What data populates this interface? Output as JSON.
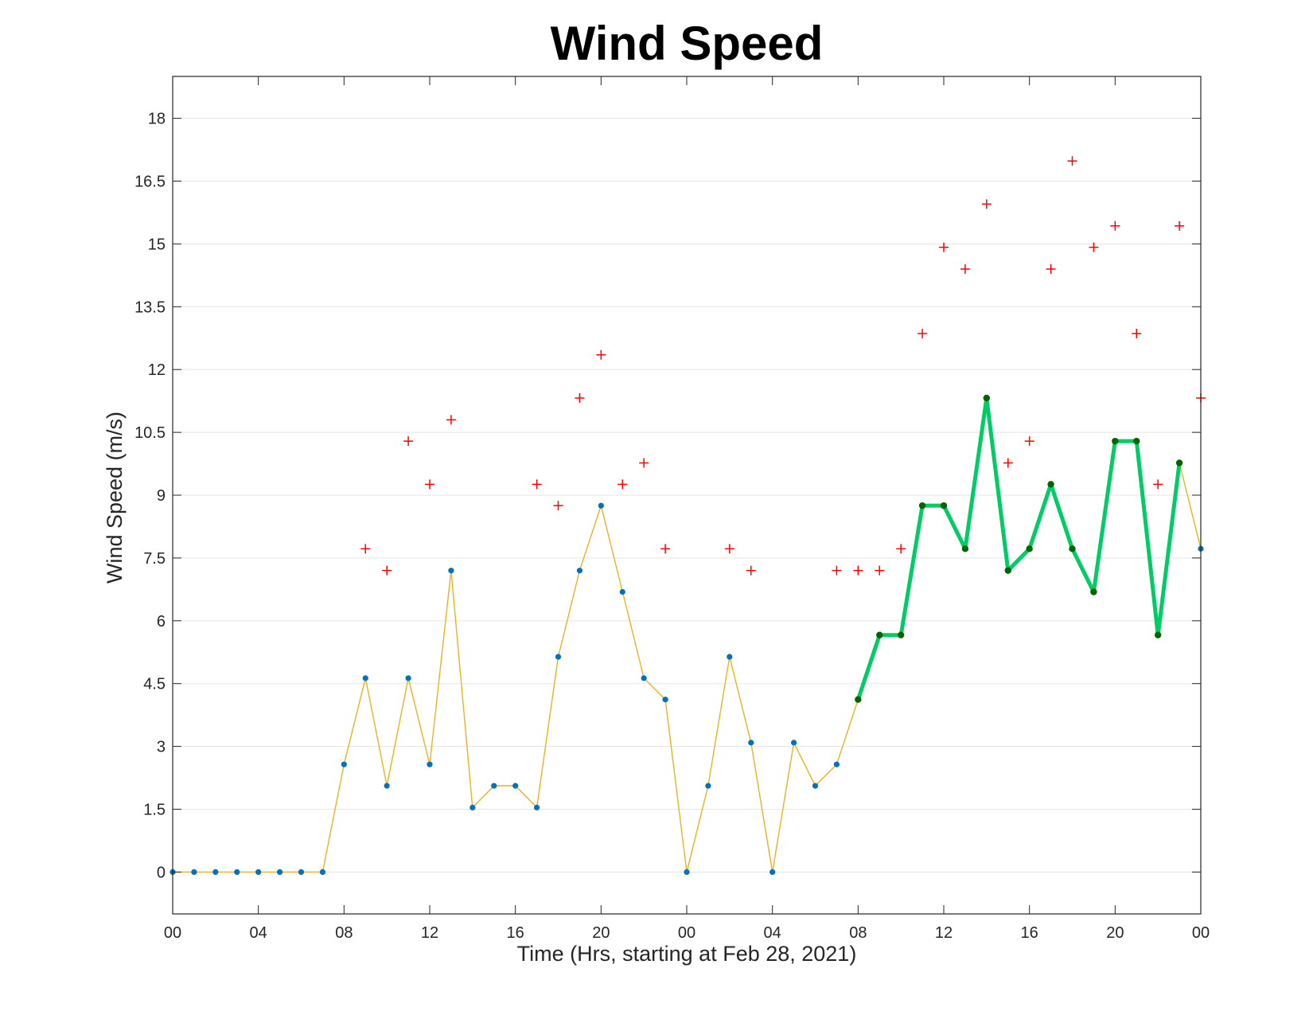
{
  "chart_data": {
    "type": "line",
    "title": "Wind Speed",
    "xlabel": "Time (Hrs, starting at Feb 28, 2021)",
    "ylabel": "Wind Speed (m/s)",
    "xlim": [
      0,
      48
    ],
    "ylim": [
      -1,
      19
    ],
    "yticks": [
      0,
      1.5,
      3,
      4.5,
      6,
      7.5,
      9,
      10.5,
      12,
      13.5,
      15,
      16.5,
      18
    ],
    "ytick_labels": [
      "0",
      "1.5",
      "3",
      "4.5",
      "6",
      "7.5",
      "9",
      "10.5",
      "12",
      "13.5",
      "15",
      "16.5",
      "18"
    ],
    "xticks": [
      0,
      4,
      8,
      12,
      16,
      20,
      24,
      28,
      32,
      36,
      40,
      44,
      48
    ],
    "xtick_labels": [
      "00",
      "04",
      "08",
      "12",
      "16",
      "20",
      "00",
      "04",
      "08",
      "12",
      "16",
      "20",
      "00"
    ],
    "grid": "horizontal",
    "colors": {
      "series_line": "#EDB120",
      "series_marker": "#0072BD",
      "highlight_line": "#00CC66",
      "highlight_marker": "#006400",
      "gust_marker": "#FF0000",
      "grid": "#E5E5E5",
      "axes": "#262626"
    },
    "series": [
      {
        "x": [
          0,
          1,
          2,
          3,
          4,
          5,
          6,
          7,
          8,
          9,
          10,
          11,
          12,
          13,
          14,
          15,
          16,
          17,
          18,
          19,
          20,
          21,
          22,
          23,
          24,
          25,
          26,
          27,
          28,
          29,
          30,
          31,
          32,
          33,
          34,
          35,
          36,
          37,
          38,
          39,
          40,
          41,
          42,
          43,
          44,
          45,
          46,
          47,
          48
        ],
        "values": [
          0,
          0,
          0,
          0,
          0,
          0,
          0,
          0,
          2.57,
          4.63,
          2.06,
          4.63,
          2.57,
          7.2,
          1.54,
          2.06,
          2.06,
          1.54,
          5.14,
          7.2,
          8.75,
          6.69,
          4.63,
          4.12,
          0,
          2.06,
          5.14,
          3.09,
          0,
          3.09,
          2.06,
          2.57,
          4.12,
          5.66,
          5.66,
          8.75,
          8.75,
          7.72,
          11.32,
          7.2,
          7.72,
          9.26,
          7.72,
          6.69,
          10.29,
          10.29,
          5.66,
          9.77,
          7.72
        ]
      },
      {
        "x": [
          32,
          33,
          34,
          35,
          36,
          37,
          38,
          39,
          40,
          41,
          42,
          43,
          44,
          45,
          46,
          47
        ],
        "values": [
          4.12,
          5.66,
          5.66,
          8.75,
          8.75,
          7.72,
          11.32,
          7.2,
          7.72,
          9.26,
          7.72,
          6.69,
          10.29,
          10.29,
          5.66,
          9.77
        ]
      },
      {
        "x": [
          9,
          10,
          11,
          12,
          13,
          17,
          18,
          19,
          20,
          21,
          22,
          23,
          26,
          27,
          31,
          32,
          33,
          34,
          35,
          36,
          37,
          38,
          39,
          40,
          41,
          42,
          43,
          44,
          45,
          46,
          47,
          48
        ],
        "values": [
          7.72,
          7.2,
          10.29,
          9.26,
          10.8,
          9.26,
          8.75,
          11.32,
          12.35,
          9.26,
          9.77,
          7.72,
          7.72,
          7.2,
          7.2,
          7.2,
          7.2,
          7.72,
          12.86,
          14.92,
          14.4,
          15.95,
          9.77,
          10.29,
          14.4,
          16.98,
          14.92,
          15.43,
          12.86,
          9.26,
          15.43,
          11.32
        ]
      }
    ]
  }
}
